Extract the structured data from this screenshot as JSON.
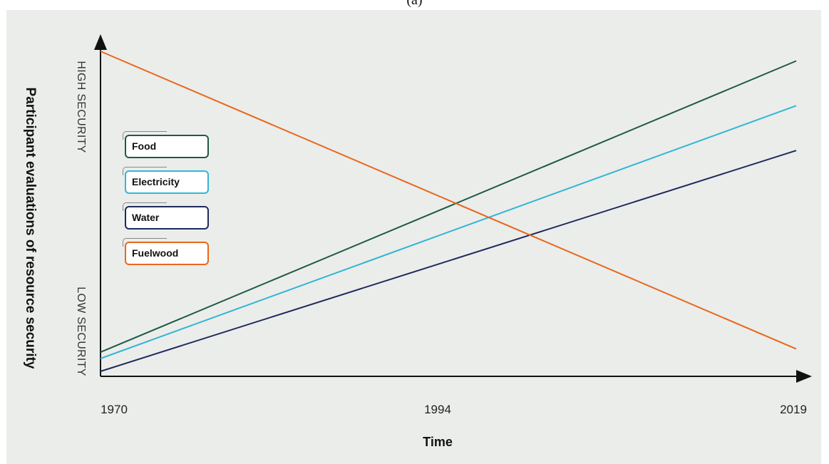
{
  "caption": "(a)",
  "chart_data": {
    "type": "line",
    "xlabel": "Time",
    "ylabel": "Participant evaluations of resource security",
    "x_ticks": [
      "1970",
      "1994",
      "2019"
    ],
    "y_ticks": [
      "LOW SECURITY",
      "HIGH SECURITY"
    ],
    "xlim": [
      1970,
      2019
    ],
    "ylim": [
      0,
      1
    ],
    "legend_position": "left",
    "grid": false,
    "series": [
      {
        "name": "Food",
        "color": "#1e5a46",
        "x": [
          1970,
          2019
        ],
        "y": [
          0.06,
          0.97
        ]
      },
      {
        "name": "Electricity",
        "color": "#33b5d6",
        "x": [
          1970,
          2019
        ],
        "y": [
          0.04,
          0.83
        ]
      },
      {
        "name": "Water",
        "color": "#1e2a5c",
        "x": [
          1970,
          2019
        ],
        "y": [
          0.0,
          0.69
        ]
      },
      {
        "name": "Fuelwood",
        "color": "#e8671a",
        "x": [
          1970,
          2019
        ],
        "y": [
          1.0,
          0.07
        ]
      }
    ]
  }
}
